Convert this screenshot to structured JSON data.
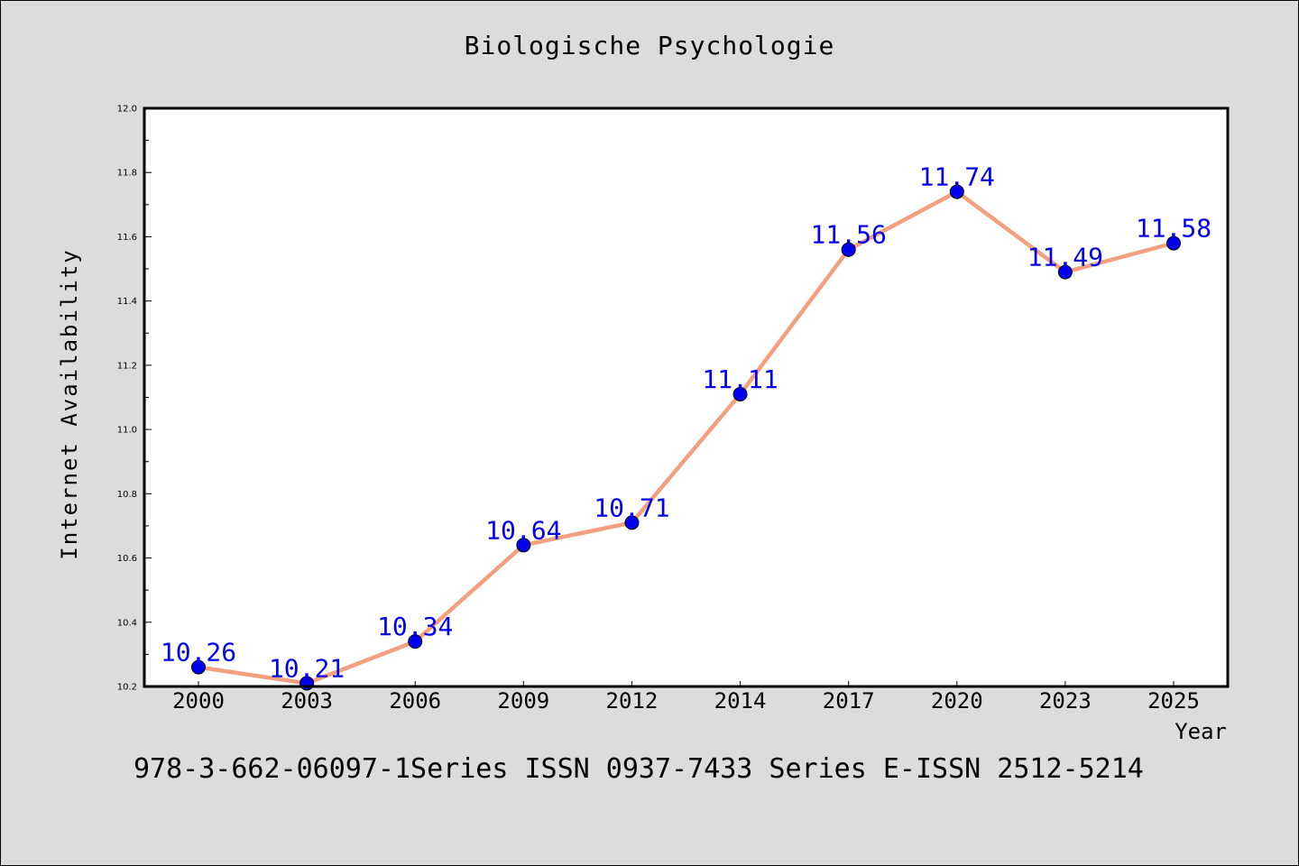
{
  "chart_data": {
    "type": "line",
    "title": "Biologische Psychologie",
    "xlabel": "Year",
    "ylabel": "Internet Availability",
    "categories": [
      "2000",
      "2003",
      "2006",
      "2009",
      "2012",
      "2014",
      "2017",
      "2020",
      "2023",
      "2025"
    ],
    "series": [
      {
        "values": [
          10.26,
          10.21,
          10.34,
          10.64,
          10.71,
          11.11,
          11.56,
          11.74,
          11.49,
          11.58
        ],
        "line_color": "#f4a080",
        "marker_color": "#0000ee",
        "label_color": "#0000ee"
      }
    ],
    "ylim": [
      10.2,
      12.0
    ],
    "yticks": [
      "10.2",
      "10.4",
      "10.6",
      "10.8",
      "11.0",
      "11.2",
      "11.4",
      "11.6",
      "11.8",
      "12.0"
    ],
    "grid": false,
    "data_labels": [
      "10.26",
      "10.21",
      "10.34",
      "10.64",
      "10.71",
      "11.11",
      "11.56",
      "11.74",
      "11.49",
      "11.58"
    ]
  },
  "footer": {
    "text": "978-3-662-06097-1Series ISSN 0937-7433 Series E-ISSN 2512-5214"
  },
  "colors": {
    "background": "#dcdcdc",
    "plot_background": "#ffffff"
  }
}
